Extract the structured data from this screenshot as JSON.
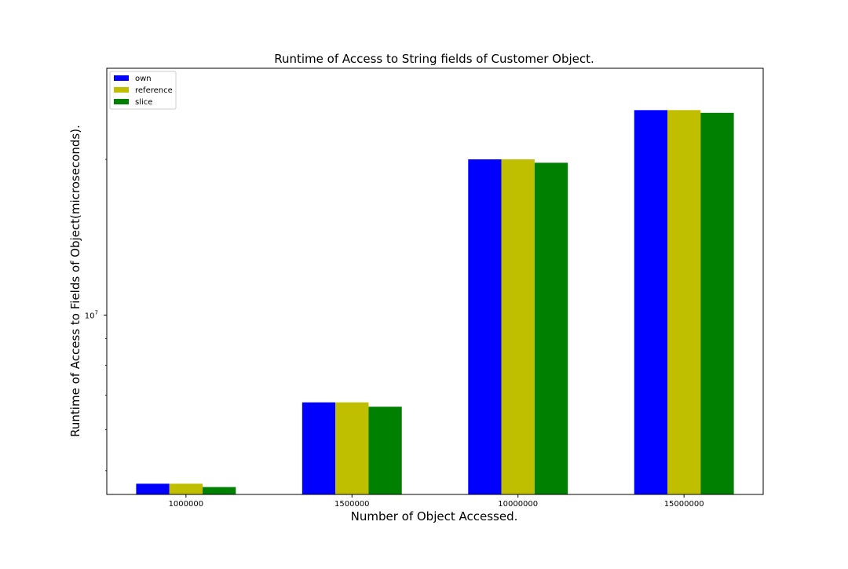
{
  "chart_data": {
    "type": "bar",
    "title": "Runtime of Access to String fields of Customer Object.",
    "xlabel": "Number of Object Accessed.",
    "ylabel": "Runtime of Access to Fields of Object(microseconds).",
    "yscale": "log",
    "ylim": [
      4500000,
      30000000
    ],
    "y_ticks": [
      {
        "value": 10000000,
        "base": "10",
        "exponent": "7"
      }
    ],
    "categories": [
      "1000000",
      "1500000",
      "10000000",
      "15000000"
    ],
    "series": [
      {
        "name": "own",
        "color": "#0000ff",
        "values": [
          4720000,
          6780000,
          20000000,
          24900000
        ]
      },
      {
        "name": "reference",
        "color": "#bfbf00",
        "values": [
          4720000,
          6780000,
          20000000,
          24900000
        ]
      },
      {
        "name": "slice",
        "color": "#008000",
        "values": [
          4650000,
          6650000,
          19700000,
          24600000
        ]
      }
    ],
    "grid": false,
    "legend_position": "upper-left"
  }
}
